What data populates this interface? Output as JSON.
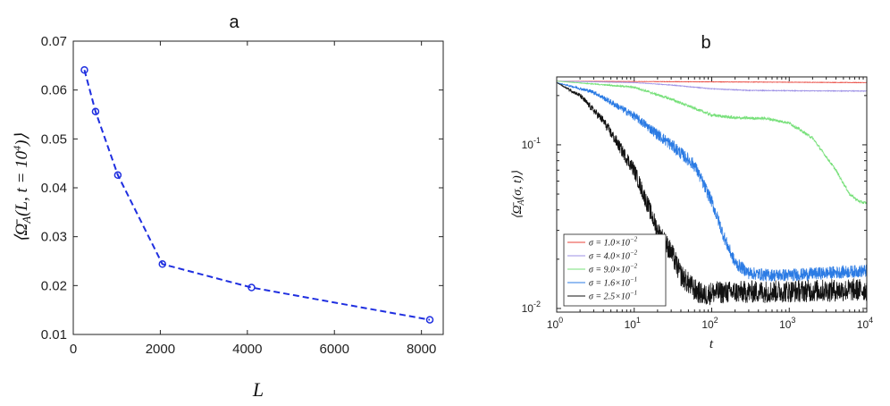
{
  "chart_data": [
    {
      "panel_label": "a",
      "type": "line",
      "x": [
        256,
        512,
        1024,
        2048,
        4096,
        8192
      ],
      "series": [
        {
          "values": [
            0.0641,
            0.0556,
            0.0426,
            0.0244,
            0.0196,
            0.013
          ],
          "color": "#1f2fe0",
          "linestyle": "dashed",
          "marker": "circle"
        }
      ],
      "xlabel": "L",
      "ylabel": "⟨Ω̄_A(L, t = 10^4)⟩",
      "xlim": [
        0,
        8500
      ],
      "ylim": [
        0.01,
        0.07
      ],
      "xticks": [
        0,
        2000,
        4000,
        6000,
        8000
      ],
      "xtick_labels": [
        "0",
        "2000",
        "4000",
        "6000",
        "8000"
      ],
      "yticks": [
        0.01,
        0.02,
        0.03,
        0.04,
        0.05,
        0.06,
        0.07
      ],
      "ytick_labels": [
        "0.01",
        "0.02",
        "0.03",
        "0.04",
        "0.05",
        "0.06",
        "0.07"
      ],
      "grid": false
    },
    {
      "panel_label": "b",
      "type": "line",
      "xscale": "log",
      "yscale": "log",
      "xlabel": "t",
      "ylabel": "⟨Ω̄_A(σ, t)⟩",
      "xlim": [
        1,
        10000
      ],
      "ylim": [
        0.0095,
        0.26
      ],
      "xtick_labels": [
        {
          "base": "10",
          "exp": "0"
        },
        {
          "base": "10",
          "exp": "1"
        },
        {
          "base": "10",
          "exp": "2"
        },
        {
          "base": "10",
          "exp": "3"
        },
        {
          "base": "10",
          "exp": "4"
        }
      ],
      "ytick_labels": [
        {
          "base": "10",
          "exp": "-2"
        },
        {
          "base": "10",
          "exp": "-1"
        }
      ],
      "legend_position": "bottom-left",
      "series": [
        {
          "name": "σ = 1.0×10^-2",
          "name_main": "σ = 1.0×10",
          "name_exp": "−2",
          "color": "#e8433a",
          "x": [
            1,
            10000
          ],
          "values": [
            0.245,
            0.24
          ],
          "noise": 0.003
        },
        {
          "name": "σ = 4.0×10^-2",
          "name_main": "σ = 4.0×10",
          "name_exp": "−2",
          "color": "#9e92e6",
          "x": [
            1,
            10,
            30,
            100,
            300,
            1000,
            10000
          ],
          "values": [
            0.245,
            0.24,
            0.232,
            0.22,
            0.215,
            0.214,
            0.213
          ],
          "noise": 0.005
        },
        {
          "name": "σ = 9.0×10^-2",
          "name_main": "σ = 9.0×10",
          "name_exp": "−2",
          "color": "#77e07a",
          "x": [
            1,
            10,
            30,
            100,
            200,
            500,
            1000,
            2000,
            4000,
            6000,
            8000,
            10000
          ],
          "values": [
            0.245,
            0.225,
            0.19,
            0.152,
            0.146,
            0.145,
            0.136,
            0.11,
            0.07,
            0.05,
            0.045,
            0.044
          ],
          "noise": 0.02
        },
        {
          "name": "σ = 1.6×10^-1",
          "name_main": "σ = 1.6×10",
          "name_exp": "−1",
          "color": "#2b7be4",
          "x": [
            1,
            3,
            10,
            30,
            60,
            100,
            150,
            200,
            300,
            500,
            1000,
            10000
          ],
          "values": [
            0.24,
            0.21,
            0.15,
            0.1,
            0.075,
            0.045,
            0.026,
            0.019,
            0.0165,
            0.016,
            0.016,
            0.017
          ],
          "noise": 0.09
        },
        {
          "name": "σ = 2.5×10^-1",
          "name_main": "σ = 2.5×10",
          "name_exp": "−1",
          "color": "#111111",
          "x": [
            1,
            2,
            4,
            10,
            20,
            30,
            40,
            60,
            80,
            100,
            10000
          ],
          "values": [
            0.24,
            0.2,
            0.14,
            0.07,
            0.03,
            0.022,
            0.016,
            0.013,
            0.012,
            0.0125,
            0.013
          ],
          "noise": 0.16
        }
      ]
    }
  ]
}
